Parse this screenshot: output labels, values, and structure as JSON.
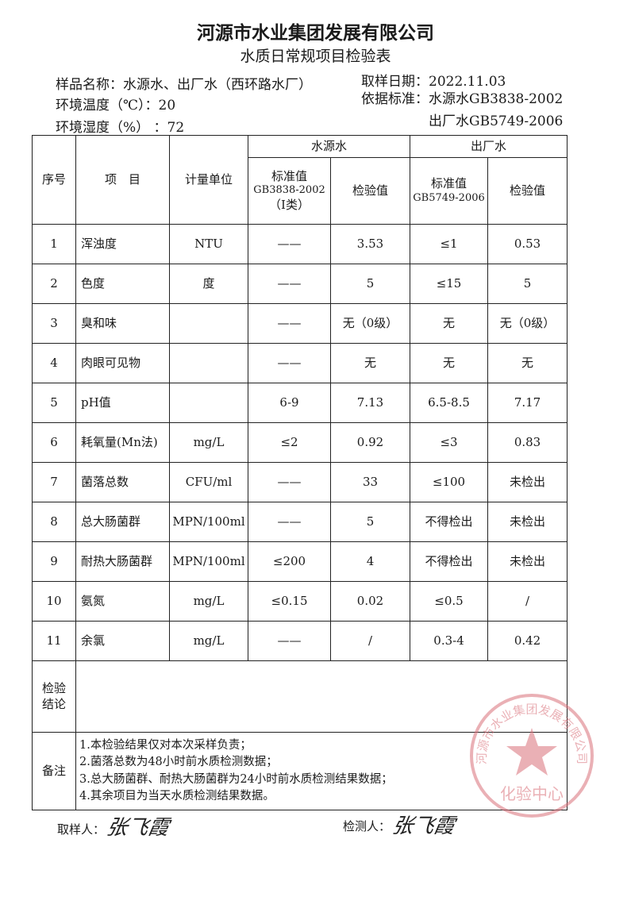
{
  "header": {
    "company": "河源市水业集团发展有限公司",
    "form_title": "水质日常规项目检验表",
    "sample_name": "样品名称：水源水、出厂水（西环路水厂）",
    "sample_date": "取样日期：2022.11.03",
    "temperature": "环境温度（℃）：20",
    "humidity": "环境湿度（%）  ：72",
    "standard_1": "依据标准：水源水GB3838-2002",
    "standard_2": "出厂水GB5749-2006"
  },
  "table": {
    "headers": {
      "no": "序号",
      "item": "项　目",
      "unit": "计量单位",
      "source_water": "水源水",
      "outlet_water": "出厂水",
      "source_std_1": "标准值",
      "source_std_2": "GB3838-2002",
      "source_std_3": "（Ⅰ类）",
      "source_val": "检验值",
      "outlet_std_1": "标准值",
      "outlet_std_2": "GB5749-2006",
      "outlet_val": "检验值"
    },
    "rows": [
      {
        "no": "1",
        "item": "浑浊度",
        "unit": "NTU",
        "src_std": "——",
        "src_val": "3.53",
        "out_std": "≤1",
        "out_val": "0.53"
      },
      {
        "no": "2",
        "item": "色度",
        "unit": "度",
        "src_std": "——",
        "src_val": "5",
        "out_std": "≤15",
        "out_val": "5"
      },
      {
        "no": "3",
        "item": "臭和味",
        "unit": "",
        "src_std": "——",
        "src_val": "无（0级）",
        "out_std": "无",
        "out_val": "无（0级）"
      },
      {
        "no": "4",
        "item": "肉眼可见物",
        "unit": "",
        "src_std": "——",
        "src_val": "无",
        "out_std": "无",
        "out_val": "无"
      },
      {
        "no": "5",
        "item": "pH值",
        "unit": "",
        "src_std": "6-9",
        "src_val": "7.13",
        "out_std": "6.5-8.5",
        "out_val": "7.17"
      },
      {
        "no": "6",
        "item": "耗氧量(Mn法)",
        "unit": "mg/L",
        "src_std": "≤2",
        "src_val": "0.92",
        "out_std": "≤3",
        "out_val": "0.83"
      },
      {
        "no": "7",
        "item": "菌落总数",
        "unit": "CFU/ml",
        "src_std": "——",
        "src_val": "33",
        "out_std": "≤100",
        "out_val": "未检出"
      },
      {
        "no": "8",
        "item": "总大肠菌群",
        "unit": "MPN/100ml",
        "src_std": "——",
        "src_val": "5",
        "out_std": "不得检出",
        "out_val": "未检出"
      },
      {
        "no": "9",
        "item": "耐热大肠菌群",
        "unit": "MPN/100ml",
        "src_std": "≤200",
        "src_val": "4",
        "out_std": "不得检出",
        "out_val": "未检出"
      },
      {
        "no": "10",
        "item": "氨氮",
        "unit": "mg/L",
        "src_std": "≤0.15",
        "src_val": "0.02",
        "out_std": "≤0.5",
        "out_val": "/"
      },
      {
        "no": "11",
        "item": "余氯",
        "unit": "mg/L",
        "src_std": "——",
        "src_val": "/",
        "out_std": "0.3-4",
        "out_val": "0.42"
      }
    ],
    "conclusion_label": "检验结论",
    "conclusion": "",
    "notes_label": "备注",
    "notes": [
      "1.本检验结果仅对本次采样负责；",
      "2.菌落总数为48小时前水质检测数据；",
      "3.总大肠菌群、耐热大肠菌群为24小时前水质检测结果数据；",
      "4.其余项目为当天水质检测结果数据。"
    ]
  },
  "footer": {
    "sampler_label": "取样人：",
    "sampler_signature": "张飞霞",
    "tester_label": "检测人：",
    "tester_signature": "张飞霞"
  },
  "stamp": {
    "ring_text": "河源市水业集团发展有限公司",
    "center_text": "化验中心",
    "color": "#d9707a"
  }
}
